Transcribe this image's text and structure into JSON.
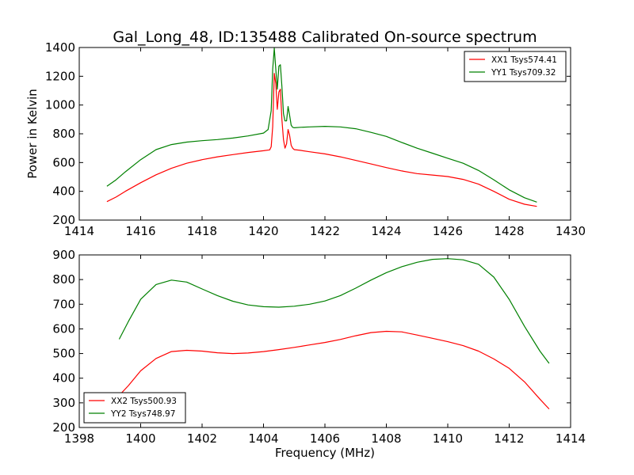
{
  "chart_data": [
    {
      "type": "line",
      "title": "Gal_Long_48, ID:135488 Calibrated On-source spectrum",
      "xlabel": "",
      "ylabel": "Power in Kelvin",
      "xlim": [
        1414,
        1430
      ],
      "ylim": [
        200,
        1400
      ],
      "xticks": [
        1414,
        1416,
        1418,
        1420,
        1422,
        1424,
        1426,
        1428,
        1430
      ],
      "yticks": [
        200,
        400,
        600,
        800,
        1000,
        1200,
        1400
      ],
      "legend_position": "top-right",
      "series": [
        {
          "name": "XX1 Tsys574.41",
          "color": "#ff0000",
          "x": [
            1414.9,
            1415.2,
            1415.5,
            1416.0,
            1416.5,
            1417.0,
            1417.5,
            1418.0,
            1418.5,
            1419.0,
            1419.5,
            1420.0,
            1420.2,
            1420.25,
            1420.3,
            1420.35,
            1420.4,
            1420.45,
            1420.5,
            1420.55,
            1420.6,
            1420.65,
            1420.7,
            1420.75,
            1420.8,
            1420.85,
            1420.9,
            1420.95,
            1421.0,
            1421.2,
            1421.5,
            1422.0,
            1422.5,
            1423.0,
            1423.5,
            1424.0,
            1424.5,
            1425.0,
            1425.5,
            1426.0,
            1426.5,
            1427.0,
            1427.5,
            1428.0,
            1428.5,
            1428.9
          ],
          "y": [
            328,
            360,
            400,
            460,
            515,
            560,
            595,
            620,
            640,
            655,
            670,
            682,
            688,
            710,
            850,
            1220,
            1150,
            970,
            1090,
            1110,
            900,
            760,
            700,
            730,
            830,
            790,
            720,
            700,
            690,
            685,
            675,
            660,
            640,
            615,
            590,
            565,
            542,
            523,
            513,
            503,
            483,
            450,
            400,
            345,
            310,
            295
          ]
        },
        {
          "name": "YY1 Tsys709.32",
          "color": "#008000",
          "x": [
            1414.9,
            1415.2,
            1415.5,
            1416.0,
            1416.5,
            1417.0,
            1417.5,
            1418.0,
            1418.5,
            1419.0,
            1419.5,
            1420.0,
            1420.15,
            1420.25,
            1420.3,
            1420.35,
            1420.4,
            1420.45,
            1420.5,
            1420.55,
            1420.6,
            1420.65,
            1420.7,
            1420.75,
            1420.8,
            1420.85,
            1420.9,
            1420.95,
            1421.0,
            1421.2,
            1421.5,
            1422.0,
            1422.5,
            1423.0,
            1423.5,
            1424.0,
            1424.5,
            1425.0,
            1425.5,
            1426.0,
            1426.5,
            1427.0,
            1427.5,
            1428.0,
            1428.5,
            1428.9
          ],
          "y": [
            435,
            480,
            535,
            620,
            690,
            725,
            742,
            752,
            760,
            770,
            785,
            805,
            830,
            960,
            1250,
            1395,
            1250,
            1110,
            1270,
            1280,
            1130,
            940,
            890,
            890,
            990,
            930,
            860,
            845,
            842,
            845,
            848,
            852,
            848,
            835,
            810,
            782,
            740,
            700,
            665,
            630,
            595,
            545,
            480,
            410,
            355,
            325
          ]
        }
      ]
    },
    {
      "type": "line",
      "title": "",
      "xlabel": "Frequency (MHz)",
      "ylabel": "",
      "xlim": [
        1398,
        1414
      ],
      "ylim": [
        200,
        900
      ],
      "xticks": [
        1398,
        1400,
        1402,
        1404,
        1406,
        1408,
        1410,
        1412,
        1414
      ],
      "yticks": [
        200,
        300,
        400,
        500,
        600,
        700,
        800,
        900
      ],
      "legend_position": "bottom-left",
      "series": [
        {
          "name": "XX2 Tsys500.93",
          "color": "#ff0000",
          "x": [
            1399.3,
            1399.6,
            1400.0,
            1400.5,
            1401.0,
            1401.5,
            1402.0,
            1402.5,
            1403.0,
            1403.5,
            1404.0,
            1404.5,
            1405.0,
            1405.5,
            1406.0,
            1406.5,
            1407.0,
            1407.5,
            1408.0,
            1408.5,
            1409.0,
            1409.5,
            1410.0,
            1410.5,
            1411.0,
            1411.5,
            1412.0,
            1412.5,
            1413.0,
            1413.3
          ],
          "y": [
            330,
            370,
            430,
            480,
            508,
            513,
            510,
            503,
            500,
            502,
            508,
            516,
            525,
            535,
            545,
            557,
            572,
            585,
            590,
            588,
            575,
            562,
            548,
            532,
            510,
            478,
            440,
            385,
            315,
            275
          ]
        },
        {
          "name": "YY2 Tsys748.97",
          "color": "#008000",
          "x": [
            1399.3,
            1399.6,
            1400.0,
            1400.5,
            1401.0,
            1401.5,
            1402.0,
            1402.5,
            1403.0,
            1403.5,
            1404.0,
            1404.5,
            1405.0,
            1405.5,
            1406.0,
            1406.5,
            1407.0,
            1407.5,
            1408.0,
            1408.5,
            1409.0,
            1409.5,
            1410.0,
            1410.5,
            1411.0,
            1411.5,
            1412.0,
            1412.5,
            1413.0,
            1413.3
          ],
          "y": [
            558,
            630,
            720,
            780,
            798,
            790,
            762,
            735,
            712,
            697,
            690,
            688,
            692,
            700,
            713,
            735,
            765,
            798,
            828,
            852,
            870,
            882,
            885,
            880,
            862,
            810,
            720,
            610,
            510,
            460
          ]
        }
      ]
    }
  ]
}
